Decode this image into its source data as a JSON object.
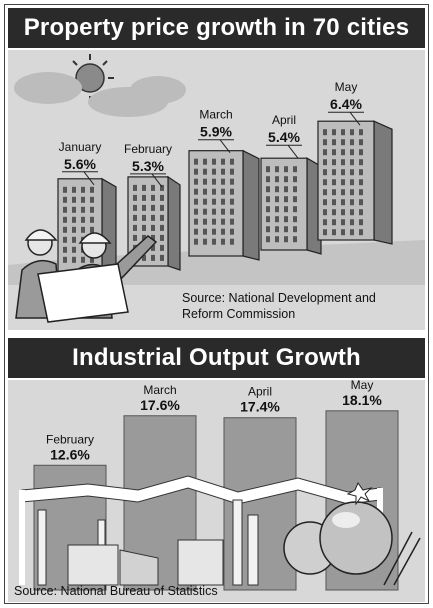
{
  "charts": {
    "property": {
      "title": "Property price growth in 70 cities",
      "source": "Source: National Development and Reform Commission"
    },
    "industrial": {
      "title": "Industrial Output Growth",
      "source": "Source: National Bureau of Statistics"
    }
  },
  "chart_data": [
    {
      "type": "bar",
      "title": "Property price growth in 70 cities",
      "categories": [
        "January",
        "February",
        "March",
        "April",
        "May"
      ],
      "values": [
        5.6,
        5.3,
        5.9,
        5.4,
        6.4
      ],
      "value_labels": [
        "5.6%",
        "5.3%",
        "5.9%",
        "5.4%",
        "6.4%"
      ],
      "unit": "%",
      "source": "Source: National Development and Reform Commission"
    },
    {
      "type": "bar",
      "title": "Industrial Output Growth",
      "categories": [
        "February",
        "March",
        "April",
        "May"
      ],
      "values": [
        12.6,
        17.6,
        17.4,
        18.1
      ],
      "value_labels": [
        "12.6%",
        "17.6%",
        "17.4%",
        "18.1%"
      ],
      "unit": "%",
      "source": "Source: National Bureau of Statistics"
    }
  ],
  "colors": {
    "banner": "#2a2a2a",
    "panel": "#d8d8d8",
    "bar": "#9a9a9a",
    "building_front": "#bdbdbd",
    "building_side": "#7a7a7a"
  }
}
